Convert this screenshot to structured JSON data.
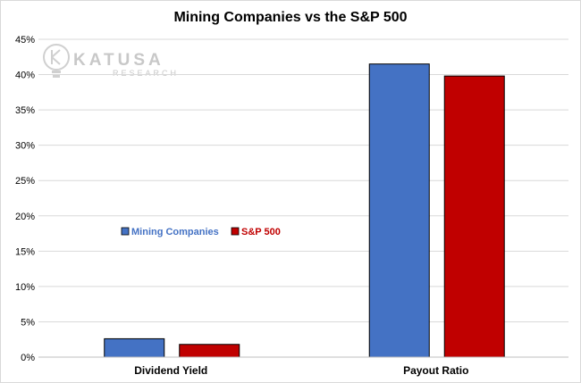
{
  "chart_data": {
    "type": "bar",
    "title": "Mining Companies vs the S&P 500",
    "categories": [
      "Dividend Yield",
      "Payout Ratio"
    ],
    "series": [
      {
        "name": "Mining Companies",
        "values": [
          2.6,
          41.5
        ],
        "color": "#4472c4"
      },
      {
        "name": "S&P 500",
        "values": [
          1.8,
          39.8
        ],
        "color": "#c00000"
      }
    ],
    "ylim": [
      0,
      45
    ],
    "yticks": [
      "0%",
      "5%",
      "10%",
      "15%",
      "20%",
      "25%",
      "30%",
      "35%",
      "40%",
      "45%"
    ],
    "grid": true,
    "legend": "center-left"
  },
  "watermark": {
    "name": "KATUSA",
    "sub": "RESEARCH",
    "icon": "lightbulb-k-icon"
  }
}
